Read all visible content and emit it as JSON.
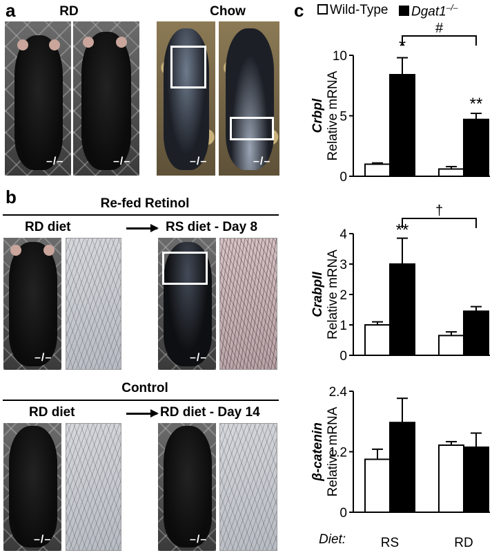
{
  "panel_a": {
    "letter": "a",
    "label_rd": "RD",
    "label_chow": "Chow",
    "genotype": "–/–"
  },
  "panel_b": {
    "letter": "b",
    "refed_title": "Re-fed Retinol",
    "refed_left": "RD diet",
    "refed_right": "RS diet - Day 8",
    "control_title": "Control",
    "control_left": "RD diet",
    "control_right": "RD diet - Day 14",
    "genotype": "–/–"
  },
  "panel_c": {
    "letter": "c",
    "legend_wt": "Wild-Type",
    "legend_ko": "Dgat1",
    "legend_ko_sup": "–/–",
    "diet_label": "Diet:",
    "ylabel_common": "Relative mRNA"
  },
  "colors": {
    "wt": "#ffffff",
    "ko": "#000000"
  },
  "chart_data": [
    {
      "type": "bar",
      "gene": "Crbpl",
      "categories": [
        "RS",
        "RD"
      ],
      "series": [
        {
          "name": "Wild-Type",
          "values": [
            1.0,
            0.6
          ],
          "errors": [
            0.1,
            0.2
          ]
        },
        {
          "name": "Dgat1–/–",
          "values": [
            8.4,
            4.7
          ],
          "errors": [
            1.4,
            0.5
          ]
        }
      ],
      "ylim": [
        0,
        10
      ],
      "yticks": [
        "0",
        "5",
        "10"
      ],
      "annotations": [
        "*",
        "**",
        "#"
      ]
    },
    {
      "type": "bar",
      "gene": "CrabpII",
      "categories": [
        "RS",
        "RD"
      ],
      "series": [
        {
          "name": "Wild-Type",
          "values": [
            1.0,
            0.65
          ],
          "errors": [
            0.1,
            0.12
          ]
        },
        {
          "name": "Dgat1–/–",
          "values": [
            3.0,
            1.45
          ],
          "errors": [
            0.85,
            0.15
          ]
        }
      ],
      "ylim": [
        0,
        4
      ],
      "yticks": [
        "0",
        "1",
        "2",
        "3",
        "4"
      ],
      "annotations": [
        "**",
        "†"
      ]
    },
    {
      "type": "bar",
      "gene": "β-catenin",
      "categories": [
        "RS",
        "RD"
      ],
      "series": [
        {
          "name": "Wild-Type",
          "values": [
            1.05,
            1.33
          ],
          "errors": [
            0.2,
            0.07
          ]
        },
        {
          "name": "Dgat1–/–",
          "values": [
            1.78,
            1.29
          ],
          "errors": [
            0.48,
            0.28
          ]
        }
      ],
      "ylim": [
        0,
        2.4
      ],
      "yticks": [
        "0",
        "1.2",
        "2.4"
      ],
      "annotations": []
    }
  ]
}
